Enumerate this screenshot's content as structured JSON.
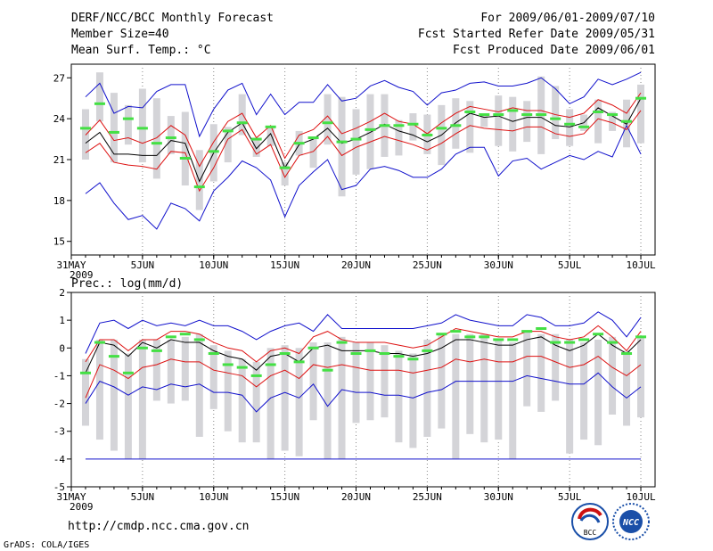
{
  "header": {
    "title": "DERF/NCC/BCC Monthly Forecast",
    "member_size": "Member Size=40",
    "variable": "Mean Surf. Temp.: °C",
    "period": "For 2009/06/01-2009/07/10",
    "start_date": "Fcst Started Refer Date 2009/05/31",
    "produced_date": "Fcst Produced Date 2009/06/01"
  },
  "footer": {
    "url": "http://cmdp.ncc.cma.gov.cn",
    "credit": "GrADS: COLA/IGES",
    "logo_bcc": "BCC",
    "logo_ncc": "NCC"
  },
  "colors": {
    "bar": "#d4d4d8",
    "median": "#44e044",
    "mean": "#000000",
    "spread": "#dd1111",
    "extreme": "#1111cc",
    "grid": "#888888"
  },
  "chart_data": [
    {
      "type": "line",
      "title": "Mean Surf. Temp.: °C",
      "x_tick_labels": [
        "31MAY",
        "5JUN",
        "10JUN",
        "15JUN",
        "20JUN",
        "25JUN",
        "30JUN",
        "5JUL",
        "10JUL"
      ],
      "x_tick_days": [
        0,
        5,
        10,
        15,
        20,
        25,
        30,
        35,
        40
      ],
      "x_year_label": "2009",
      "x_range": [
        0,
        41
      ],
      "ylim": [
        14,
        28
      ],
      "y_ticks": [
        15,
        18,
        21,
        24,
        27
      ],
      "x": [
        1,
        2,
        3,
        4,
        5,
        6,
        7,
        8,
        9,
        10,
        11,
        12,
        13,
        14,
        15,
        16,
        17,
        18,
        19,
        20,
        21,
        22,
        23,
        24,
        25,
        26,
        27,
        28,
        29,
        30,
        31,
        32,
        33,
        34,
        35,
        36,
        37,
        38,
        39,
        40
      ],
      "series": [
        {
          "name": "max",
          "values": [
            25.6,
            26.6,
            24.4,
            24.9,
            24.8,
            26,
            26.5,
            26.5,
            22.7,
            24.7,
            26.1,
            26.6,
            24.3,
            25.8,
            24.3,
            25.2,
            25.2,
            26.5,
            25.3,
            25.5,
            26.4,
            26.8,
            26.3,
            26,
            25,
            25.9,
            26.1,
            26.6,
            26.7,
            26.4,
            26.4,
            26.6,
            27,
            26.2,
            25.1,
            25.6,
            26.9,
            26.5,
            26.9,
            27.4
          ]
        },
        {
          "name": "mean_plus_sd",
          "values": [
            22.8,
            23.9,
            22.4,
            22.6,
            22.2,
            22.6,
            23.5,
            22.8,
            20.5,
            22.3,
            23.8,
            24.4,
            22.6,
            23.5,
            21.1,
            22.8,
            23.2,
            24.2,
            22.9,
            23.3,
            23.8,
            24.4,
            23.8,
            23.6,
            22.9,
            23.7,
            24.4,
            24.9,
            24.7,
            24.5,
            24.8,
            24.6,
            24.6,
            24.3,
            24.1,
            24.4,
            25.4,
            25,
            24.4,
            25.9
          ]
        },
        {
          "name": "mean",
          "values": [
            22.2,
            23,
            21.4,
            21.4,
            21.3,
            21.3,
            22.4,
            22.2,
            19.4,
            21.5,
            23,
            23.7,
            21.8,
            22.9,
            20.4,
            22.1,
            22.5,
            23.3,
            22.2,
            22.5,
            23,
            23.6,
            23.1,
            22.8,
            22.3,
            22.8,
            23.7,
            24.4,
            24.1,
            24.2,
            23.8,
            24.1,
            24.1,
            23.5,
            23.4,
            23.7,
            24.8,
            24.2,
            23.6,
            25.5
          ]
        },
        {
          "name": "mean_minus_sd",
          "values": [
            21.5,
            22.2,
            20.8,
            20.6,
            20.5,
            20.3,
            21.6,
            21.5,
            18.7,
            20.4,
            22.5,
            23.2,
            21.4,
            22.1,
            19.7,
            21.3,
            21.6,
            22.7,
            21.3,
            21.9,
            22.3,
            22.7,
            22.4,
            22.1,
            21.7,
            22.2,
            22.9,
            23.5,
            23.3,
            23.2,
            23.1,
            23.4,
            23.4,
            22.9,
            22.7,
            22.9,
            24,
            23.7,
            23.2,
            24.6
          ]
        },
        {
          "name": "min",
          "values": [
            18.5,
            19.3,
            17.8,
            16.6,
            16.9,
            15.9,
            17.8,
            17.4,
            16.5,
            18.7,
            19.7,
            20.9,
            20.4,
            19.5,
            16.8,
            19.1,
            20.1,
            21,
            18.8,
            19.1,
            20.3,
            20.5,
            20.2,
            19.7,
            19.7,
            20.3,
            21.4,
            21.9,
            21.9,
            19.8,
            20.9,
            21.1,
            20.3,
            20.8,
            21.3,
            21,
            21.6,
            21.2,
            23.5,
            21.4
          ]
        },
        {
          "name": "median",
          "values": [
            23.3,
            25.1,
            23,
            24,
            23.3,
            22.2,
            22.6,
            21.1,
            19,
            21.6,
            23.1,
            23.7,
            22.5,
            23.4,
            20.4,
            22.2,
            22.6,
            23.7,
            22.3,
            22.5,
            23.2,
            23.5,
            23.5,
            23.6,
            22.8,
            23.3,
            23.5,
            24.5,
            24.3,
            24.3,
            24.6,
            24.3,
            24.3,
            24,
            23.6,
            23.4,
            24.5,
            24.3,
            23.8,
            25.5
          ]
        },
        {
          "name": "box_top",
          "values": [
            24.7,
            27.4,
            25.9,
            25,
            26.2,
            25.5,
            24.2,
            24.5,
            21.7,
            23.6,
            23.4,
            25.8,
            22.6,
            23.4,
            20.8,
            23.1,
            22.6,
            25.8,
            25.6,
            24.7,
            25.8,
            25.8,
            23.9,
            24.4,
            24.3,
            25,
            25.5,
            25.3,
            24.3,
            25.7,
            25.6,
            25.3,
            27.1,
            26.4,
            24.7,
            24.3,
            25.4,
            24.5,
            25.4,
            26.5
          ]
        },
        {
          "name": "box_bottom",
          "values": [
            21,
            23.8,
            20.8,
            22.1,
            20.8,
            19.6,
            21.4,
            19.1,
            17.3,
            19.4,
            20.8,
            22.8,
            21.2,
            22,
            19.1,
            21.3,
            20.4,
            22.1,
            18.3,
            19.9,
            20.3,
            21.2,
            21.3,
            22.4,
            21.4,
            20.6,
            21.8,
            21.5,
            23.4,
            22,
            21.6,
            22.3,
            21.4,
            22.5,
            22,
            23.1,
            22.2,
            23.1,
            21.9,
            22.2
          ]
        }
      ]
    },
    {
      "type": "line",
      "title": "Prec.: log(mm/d)",
      "x_tick_labels": [
        "31MAY",
        "5JUN",
        "10JUN",
        "15JUN",
        "20JUN",
        "25JUN",
        "30JUN",
        "5JUL",
        "10JUL"
      ],
      "x_tick_days": [
        0,
        5,
        10,
        15,
        20,
        25,
        30,
        35,
        40
      ],
      "x_year_label": "2009",
      "x_range": [
        0,
        41
      ],
      "ylim": [
        -5,
        2
      ],
      "y_ticks": [
        -5,
        -4,
        -3,
        -2,
        -1,
        0,
        1,
        2
      ],
      "x": [
        1,
        2,
        3,
        4,
        5,
        6,
        7,
        8,
        9,
        10,
        11,
        12,
        13,
        14,
        15,
        16,
        17,
        18,
        19,
        20,
        21,
        22,
        23,
        24,
        25,
        26,
        27,
        28,
        29,
        30,
        31,
        32,
        33,
        34,
        35,
        36,
        37,
        38,
        39,
        40
      ],
      "series": [
        {
          "name": "max",
          "values": [
            -0.2,
            0.9,
            1,
            0.7,
            1,
            0.8,
            0.9,
            0.8,
            1,
            0.8,
            0.8,
            0.6,
            0.3,
            0.6,
            0.8,
            0.9,
            0.6,
            1.2,
            0.7,
            0.7,
            0.7,
            0.7,
            0.7,
            0.7,
            0.8,
            0.9,
            1.2,
            1,
            0.9,
            0.8,
            0.8,
            1.2,
            1.1,
            0.8,
            0.8,
            0.9,
            1.3,
            1,
            0.4,
            1.1
          ]
        },
        {
          "name": "mean_plus_sd",
          "values": [
            -0.5,
            0.3,
            0.3,
            -0.1,
            0.3,
            0.3,
            0.6,
            0.6,
            0.5,
            0.2,
            0,
            -0.1,
            -0.5,
            -0.1,
            0,
            -0.2,
            0.4,
            0.6,
            0.3,
            0.2,
            0.2,
            0.2,
            0.1,
            0,
            0.1,
            0.4,
            0.7,
            0.6,
            0.5,
            0.4,
            0.4,
            0.6,
            0.6,
            0.4,
            0.3,
            0.4,
            0.8,
            0.4,
            -0.1,
            0.6
          ]
        },
        {
          "name": "mean",
          "values": [
            -0.9,
            0.2,
            0.1,
            -0.3,
            0.2,
            0,
            0.3,
            0.2,
            0.2,
            -0.1,
            -0.3,
            -0.4,
            -0.8,
            -0.3,
            -0.2,
            -0.5,
            0,
            0.1,
            -0.1,
            -0.1,
            -0.1,
            -0.2,
            -0.2,
            -0.3,
            -0.2,
            0,
            0.3,
            0.3,
            0.2,
            0.1,
            0.1,
            0.3,
            0.4,
            0.1,
            -0.1,
            0.1,
            0.5,
            0.1,
            -0.2,
            0.3
          ]
        },
        {
          "name": "mean_minus_sd",
          "values": [
            -1.8,
            -0.6,
            -0.8,
            -1.1,
            -0.7,
            -0.6,
            -0.4,
            -0.5,
            -0.5,
            -0.8,
            -0.9,
            -1,
            -1.4,
            -1,
            -0.8,
            -1.1,
            -0.6,
            -0.7,
            -0.6,
            -0.7,
            -0.8,
            -0.8,
            -0.8,
            -0.9,
            -0.8,
            -0.7,
            -0.4,
            -0.5,
            -0.4,
            -0.5,
            -0.5,
            -0.3,
            -0.3,
            -0.5,
            -0.7,
            -0.6,
            -0.3,
            -0.7,
            -1,
            -0.6
          ]
        },
        {
          "name": "min",
          "values": [
            -2,
            -1.2,
            -1.4,
            -1.7,
            -1.4,
            -1.5,
            -1.3,
            -1.4,
            -1.3,
            -1.6,
            -1.6,
            -1.7,
            -2.3,
            -1.8,
            -1.6,
            -1.8,
            -1.3,
            -2.1,
            -1.5,
            -1.6,
            -1.6,
            -1.7,
            -1.7,
            -1.8,
            -1.6,
            -1.5,
            -1.2,
            -1.2,
            -1.2,
            -1.2,
            -1.2,
            -1,
            -1.1,
            -1.2,
            -1.3,
            -1.3,
            -0.9,
            -1.4,
            -1.8,
            -1.4
          ]
        },
        {
          "name": "median",
          "values": [
            -0.9,
            0.2,
            -0.3,
            -0.9,
            0,
            -0.1,
            0.4,
            0.5,
            0.3,
            -0.2,
            -0.6,
            -0.7,
            -1,
            -0.6,
            -0.2,
            -0.5,
            0,
            -0.8,
            0.2,
            -0.2,
            -0.1,
            -0.2,
            -0.3,
            -0.4,
            -0.1,
            0.5,
            0.6,
            0.4,
            0.4,
            0.3,
            0.3,
            0.6,
            0.7,
            0.2,
            0.2,
            0.3,
            0.5,
            0.2,
            -0.2,
            0.4
          ]
        },
        {
          "name": "box_top",
          "values": [
            -0.4,
            0.3,
            0.3,
            -0.2,
            0.3,
            0.3,
            0.3,
            0.4,
            0.5,
            0.1,
            -0.1,
            -0.4,
            -0.5,
            0,
            0.1,
            0,
            0.2,
            0.2,
            0.4,
            0.2,
            0.2,
            0.1,
            -0.1,
            -0.2,
            0.3,
            0.5,
            0.5,
            0.5,
            0.5,
            0.3,
            0.2,
            0.6,
            0.5,
            0.5,
            0.3,
            0.2,
            0.3,
            0.4,
            -0.1,
            0.4
          ]
        },
        {
          "name": "box_bottom",
          "values": [
            -2.8,
            -3.3,
            -3.7,
            -4,
            -4,
            -1.9,
            -2,
            -1.9,
            -3.2,
            -2.2,
            -3,
            -3.4,
            -3.4,
            -4,
            -3.7,
            -3.9,
            -2.6,
            -4,
            -4,
            -2.7,
            -2.6,
            -2.5,
            -3.4,
            -3.6,
            -3.2,
            -2.9,
            -4,
            -3.1,
            -3.4,
            -3.3,
            -4,
            -2.1,
            -2.3,
            -1.9,
            -3.8,
            -3.3,
            -3.5,
            -2.4,
            -2.8,
            -2.5
          ]
        },
        {
          "name": "floor",
          "values": [
            -4,
            -4,
            -4,
            -4,
            -4,
            -4,
            -4,
            -4,
            -4,
            -4,
            -4,
            -4,
            -4,
            -4,
            -4,
            -4,
            -4,
            -4,
            -4,
            -4,
            -4,
            -4,
            -4,
            -4,
            -4,
            -4,
            -4,
            -4,
            -4,
            -4,
            -4,
            -4,
            -4,
            -4,
            -4,
            -4,
            -4,
            -4,
            -4,
            -4
          ]
        }
      ]
    }
  ]
}
